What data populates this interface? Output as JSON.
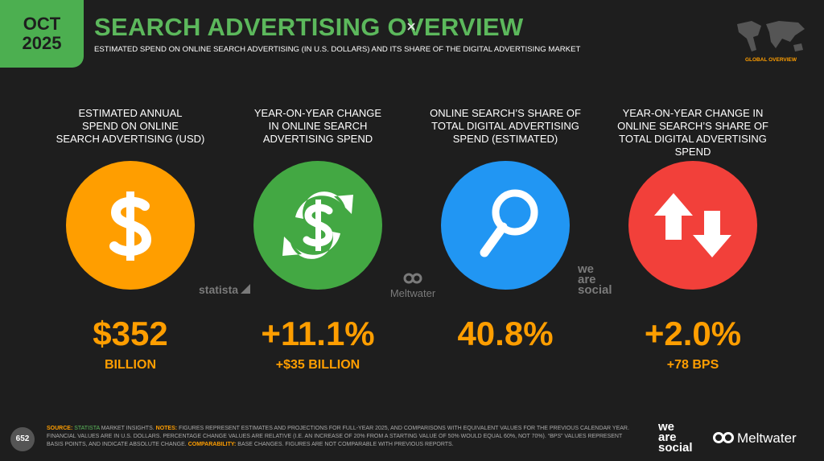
{
  "header": {
    "badge_month": "OCT",
    "badge_year": "2025",
    "title": "SEARCH ADVERTISING OVERVIEW",
    "subtitle": "ESTIMATED SPEND ON ONLINE SEARCH ADVERTISING (IN U.S. DOLLARS) AND ITS SHARE OF THE DIGITAL ADVERTISING MARKET",
    "region": "GLOBAL OVERVIEW"
  },
  "stats": [
    {
      "label": [
        "ESTIMATED ANNUAL",
        "SPEND ON ONLINE",
        "SEARCH ADVERTISING (USD)"
      ],
      "value": "$352",
      "subvalue": "BILLION",
      "color": "#ff9e00",
      "icon": "dollar"
    },
    {
      "label": [
        "YEAR-ON-YEAR CHANGE",
        "IN ONLINE SEARCH",
        "ADVERTISING SPEND"
      ],
      "value": "+11.1%",
      "subvalue": "+$35 BILLION",
      "color": "#43a843",
      "icon": "cycle"
    },
    {
      "label": [
        "ONLINE SEARCH’S SHARE OF",
        "TOTAL DIGITAL ADVERTISING",
        "SPEND (ESTIMATED)"
      ],
      "value": "40.8%",
      "subvalue": null,
      "color": "#2196f3",
      "icon": "search"
    },
    {
      "label": [
        "YEAR-ON-YEAR CHANGE IN",
        "ONLINE SEARCH’S SHARE OF",
        "TOTAL DIGITAL ADVERTISING SPEND"
      ],
      "value": "+2.0%",
      "subvalue": "+78 BPS",
      "color": "#f2403a",
      "icon": "arrows"
    }
  ],
  "partners": {
    "statista": "statista",
    "meltwater": "Meltwater",
    "wearesocial": [
      "we",
      "are",
      "social"
    ]
  },
  "footer": {
    "page": "652",
    "source_label": "SOURCE:",
    "source_name": "STATISTA",
    "source_rest": "MARKET INSIGHTS.",
    "notes_label": "NOTES:",
    "notes": "FIGURES REPRESENT ESTIMATES AND PROJECTIONS FOR FULL-YEAR 2025, AND COMPARISONS WITH EQUIVALENT VALUES FOR THE PREVIOUS CALENDAR YEAR. FINANCIAL VALUES ARE IN U.S. DOLLARS. PERCENTAGE CHANGE VALUES ARE RELATIVE (I.E. AN INCREASE OF 20% FROM A STARTING VALUE OF 50% WOULD EQUAL 60%, NOT 70%). “BPS” VALUES REPRESENT BASIS POINTS, AND INDICATE ABSOLUTE CHANGE.",
    "comparability_label": "COMPARABILITY:",
    "comparability": "BASE CHANGES. FIGURES ARE NOT COMPARABLE WITH PREVIOUS REPORTS.",
    "logo_wearesocial": [
      "we",
      "are",
      "social"
    ],
    "logo_meltwater": "Meltwater"
  }
}
